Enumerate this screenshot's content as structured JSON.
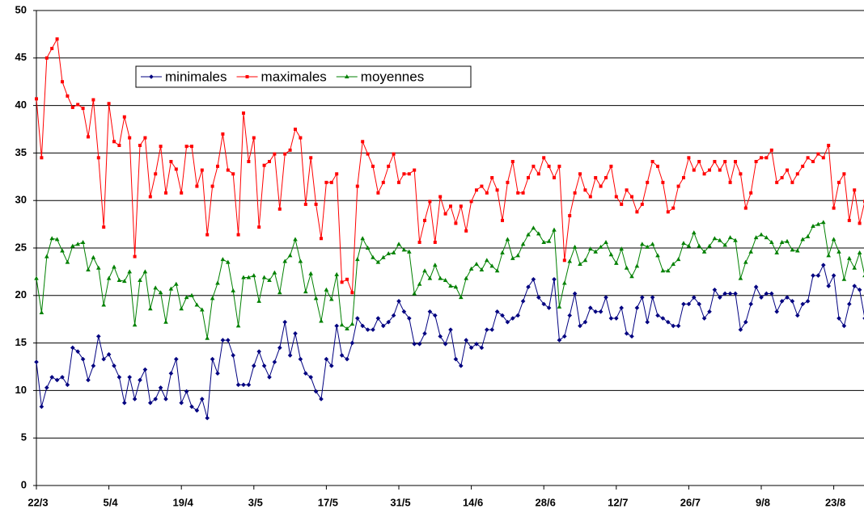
{
  "chart_data": {
    "type": "line",
    "categories": [
      "22/3",
      null,
      null,
      null,
      null,
      null,
      null,
      null,
      null,
      null,
      null,
      null,
      null,
      null,
      "5/4",
      null,
      null,
      null,
      null,
      null,
      null,
      null,
      null,
      null,
      null,
      null,
      null,
      null,
      "19/4",
      null,
      null,
      null,
      null,
      null,
      null,
      null,
      null,
      null,
      null,
      null,
      null,
      null,
      "3/5",
      null,
      null,
      null,
      null,
      null,
      null,
      null,
      null,
      null,
      null,
      null,
      null,
      null,
      "17/5",
      null,
      null,
      null,
      null,
      null,
      null,
      null,
      null,
      null,
      null,
      null,
      null,
      null,
      "31/5",
      null,
      null,
      null,
      null,
      null,
      null,
      null,
      null,
      null,
      null,
      null,
      null,
      null,
      "14/6",
      null,
      null,
      null,
      null,
      null,
      null,
      null,
      null,
      null,
      null,
      null,
      null,
      null,
      "28/6",
      null,
      null,
      null,
      null,
      null,
      null,
      null,
      null,
      null,
      null,
      null,
      null,
      null,
      "12/7",
      null,
      null,
      null,
      null,
      null,
      null,
      null,
      null,
      null,
      null,
      null,
      null,
      null,
      "26/7",
      null,
      null,
      null,
      null,
      null,
      null,
      null,
      null,
      null,
      null,
      null,
      null,
      null,
      "9/8",
      null,
      null,
      null,
      null,
      null,
      null,
      null,
      null,
      null,
      null,
      null,
      null,
      null,
      "23/8",
      null,
      null,
      null,
      null,
      null,
      null
    ],
    "series": [
      {
        "name": "minimales",
        "color": "#000080",
        "marker": "diamond",
        "values": [
          13,
          8.3,
          10.3,
          11.4,
          11.1,
          11.4,
          10.6,
          14.5,
          14.1,
          13.3,
          11.1,
          12.6,
          15.7,
          13.3,
          13.8,
          12.6,
          11.4,
          8.7,
          11.4,
          9.1,
          11.1,
          12.2,
          8.7,
          9.1,
          10.3,
          9.1,
          11.8,
          13.3,
          8.7,
          9.9,
          8.3,
          7.9,
          9.1,
          7.1,
          13.3,
          11.8,
          15.3,
          15.3,
          13.7,
          10.6,
          10.6,
          10.6,
          12.6,
          14.1,
          12.6,
          11.4,
          13,
          14.5,
          17.2,
          13.7,
          16,
          13.3,
          11.8,
          11.4,
          9.9,
          9.1,
          13.3,
          12.6,
          16.8,
          13.7,
          13.3,
          15,
          17.6,
          16.8,
          16.4,
          16.4,
          17.6,
          16.8,
          17.2,
          17.9,
          19.4,
          18.3,
          17.6,
          14.9,
          14.9,
          16,
          18.3,
          17.9,
          15.7,
          14.9,
          16.4,
          13.3,
          12.6,
          15.3,
          14.5,
          14.9,
          14.5,
          16.4,
          16.4,
          18.3,
          17.9,
          17.2,
          17.6,
          17.9,
          19.4,
          20.9,
          21.7,
          19.8,
          19.1,
          18.7,
          21.7,
          15.3,
          15.7,
          17.9,
          20.2,
          16.8,
          17.2,
          18.7,
          18.3,
          18.3,
          19.8,
          17.6,
          17.6,
          18.7,
          16,
          15.7,
          18.7,
          19.8,
          17.2,
          19.8,
          17.9,
          17.6,
          17.2,
          16.8,
          16.8,
          19.1,
          19.1,
          19.8,
          19.1,
          17.6,
          18.3,
          20.6,
          19.8,
          20.2,
          20.2,
          20.2,
          16.4,
          17.2,
          19.1,
          20.9,
          19.8,
          20.2,
          20.2,
          18.3,
          19.4,
          19.8,
          19.4,
          17.9,
          19.1,
          19.4,
          22.1,
          22.1,
          23.2,
          21,
          22.1,
          17.6,
          16.8,
          19.1,
          21,
          20.6,
          17.6
        ]
      },
      {
        "name": "maximales",
        "color": "#ff0000",
        "marker": "square",
        "values": [
          40.7,
          34.5,
          45,
          46,
          47,
          42.5,
          41,
          39.8,
          40.1,
          39.7,
          36.7,
          40.6,
          34.5,
          27.2,
          40.2,
          36.2,
          35.8,
          38.8,
          36.6,
          24.1,
          35.8,
          36.6,
          30.4,
          32.8,
          35.7,
          30.8,
          34.1,
          33.3,
          30.8,
          35.7,
          35.7,
          31.5,
          33.2,
          26.4,
          31.5,
          33.6,
          37,
          33.2,
          32.8,
          26.4,
          39.2,
          34.1,
          36.6,
          27.2,
          33.7,
          34.1,
          34.9,
          29.1,
          34.9,
          35.3,
          37.5,
          36.6,
          29.6,
          34.5,
          29.6,
          26,
          31.9,
          31.9,
          32.8,
          21.4,
          21.7,
          20.3,
          31.5,
          36.2,
          34.9,
          33.6,
          30.8,
          31.9,
          33.6,
          34.9,
          31.9,
          32.8,
          32.8,
          33.2,
          25.6,
          27.9,
          29.9,
          25.6,
          30.4,
          28.6,
          29.4,
          27.6,
          29.4,
          26.8,
          29.9,
          31.1,
          31.5,
          30.8,
          32.4,
          31.1,
          27.9,
          31.9,
          34.1,
          30.8,
          30.8,
          32.4,
          33.6,
          32.8,
          34.5,
          33.6,
          32.4,
          33.6,
          23.7,
          28.4,
          30.8,
          32.8,
          31.1,
          30.4,
          32.4,
          31.5,
          32.4,
          33.6,
          30.4,
          29.6,
          31.1,
          30.4,
          28.8,
          29.6,
          31.9,
          34.1,
          33.6,
          31.9,
          28.8,
          29.2,
          31.5,
          32.4,
          34.5,
          33.2,
          34.1,
          32.8,
          33.2,
          34.1,
          33.2,
          34.1,
          31.9,
          34.1,
          32.8,
          29.2,
          30.8,
          34.1,
          34.5,
          34.5,
          35.3,
          31.9,
          32.4,
          33.2,
          31.9,
          32.8,
          33.6,
          34.5,
          34.1,
          34.9,
          34.5,
          35.8,
          29.2,
          31.9,
          32.8,
          27.9,
          31.1,
          27.6,
          29.9
        ]
      },
      {
        "name": "moyennes",
        "color": "#008000",
        "marker": "triangle",
        "values": [
          21.8,
          18.2,
          24.1,
          26,
          25.9,
          24.7,
          23.5,
          25.2,
          25.4,
          25.6,
          22.7,
          24,
          22.9,
          19,
          21.8,
          23,
          21.6,
          21.5,
          22.5,
          16.9,
          21.6,
          22.5,
          18.6,
          20.8,
          20.3,
          17.2,
          20.7,
          21.2,
          18.6,
          19.8,
          20,
          19,
          18.5,
          15.5,
          19.7,
          21.3,
          23.8,
          23.5,
          20.5,
          16.8,
          21.9,
          21.9,
          22.1,
          19.4,
          21.9,
          21.6,
          22.4,
          20.3,
          23.6,
          24.2,
          25.9,
          23.6,
          20.4,
          22.3,
          19.7,
          17.3,
          20.6,
          19.6,
          22.2,
          16.9,
          16.5,
          17,
          23.8,
          26,
          25,
          24,
          23.5,
          24,
          24.4,
          24.5,
          25.4,
          24.8,
          24.6,
          20.2,
          21.2,
          22.6,
          21.8,
          23.2,
          21.8,
          21.6,
          21,
          20.9,
          19.8,
          21.8,
          22.8,
          23.3,
          22.7,
          23.7,
          23.1,
          22.6,
          24.5,
          25.9,
          23.9,
          24.2,
          25.4,
          26.4,
          27.1,
          26.5,
          25.6,
          25.7,
          26.9,
          18.8,
          21.3,
          23.6,
          25.1,
          23.3,
          23.7,
          24.9,
          24.6,
          25.1,
          25.6,
          24.3,
          23.4,
          24.9,
          22.9,
          22,
          23.1,
          25.4,
          25.1,
          25.4,
          24.2,
          22.6,
          22.6,
          23.3,
          23.8,
          25.5,
          25.2,
          26.6,
          25.2,
          24.6,
          25.2,
          26,
          25.8,
          25.3,
          26.1,
          25.8,
          21.8,
          23.5,
          24.6,
          26.1,
          26.4,
          26.1,
          25.6,
          24.5,
          25.6,
          25.7,
          24.8,
          24.7,
          25.9,
          26.2,
          27.3,
          27.5,
          27.7,
          24.2,
          25.9,
          24.6,
          21.7,
          23.9,
          22.9,
          24.5,
          22.1
        ]
      }
    ],
    "ylim": [
      0,
      50
    ],
    "yticks": [
      0,
      5,
      10,
      15,
      20,
      25,
      30,
      35,
      40,
      45,
      50
    ],
    "grid": true,
    "legend": "upper left"
  }
}
